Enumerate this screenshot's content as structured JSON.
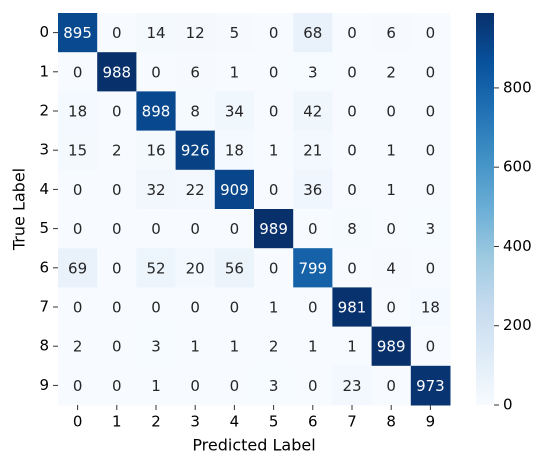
{
  "chart_data": {
    "type": "heatmap",
    "xlabel": "Predicted Label",
    "ylabel": "True Label",
    "x_categories": [
      "0",
      "1",
      "2",
      "3",
      "4",
      "5",
      "6",
      "7",
      "8",
      "9"
    ],
    "y_categories": [
      "0",
      "1",
      "2",
      "3",
      "4",
      "5",
      "6",
      "7",
      "8",
      "9"
    ],
    "values": [
      [
        895,
        0,
        14,
        12,
        5,
        0,
        68,
        0,
        6,
        0
      ],
      [
        0,
        988,
        0,
        6,
        1,
        0,
        3,
        0,
        2,
        0
      ],
      [
        18,
        0,
        898,
        8,
        34,
        0,
        42,
        0,
        0,
        0
      ],
      [
        15,
        2,
        16,
        926,
        18,
        1,
        21,
        0,
        1,
        0
      ],
      [
        0,
        0,
        32,
        22,
        909,
        0,
        36,
        0,
        1,
        0
      ],
      [
        0,
        0,
        0,
        0,
        0,
        989,
        0,
        8,
        0,
        3
      ],
      [
        69,
        0,
        52,
        20,
        56,
        0,
        799,
        0,
        4,
        0
      ],
      [
        0,
        0,
        0,
        0,
        0,
        1,
        0,
        981,
        0,
        18
      ],
      [
        2,
        0,
        3,
        1,
        1,
        2,
        1,
        1,
        989,
        0
      ],
      [
        0,
        0,
        1,
        0,
        0,
        3,
        0,
        23,
        0,
        973
      ]
    ],
    "colormap": [
      "#f7fbff",
      "#deebf7",
      "#c6dbef",
      "#9ecae1",
      "#6baed6",
      "#4292c6",
      "#2171b5",
      "#08519c",
      "#08306b"
    ],
    "zlim": [
      0,
      989
    ],
    "zticks": [
      0,
      200,
      400,
      600,
      800
    ],
    "colorbar": true
  }
}
